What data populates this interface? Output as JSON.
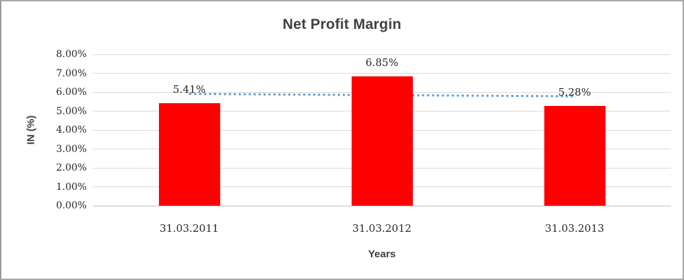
{
  "window": {
    "background_color": "#ffffff",
    "frame_color": "#a6a6a6"
  },
  "chart_data": {
    "type": "bar",
    "title": "Net Profit Margin",
    "xlabel": "Years",
    "ylabel": "IN (%)",
    "categories": [
      "31.03.2011",
      "31.03.2012",
      "31.03.2013"
    ],
    "values": [
      5.41,
      6.85,
      5.28
    ],
    "data_labels": [
      "5.41%",
      "6.85%",
      "5.28%"
    ],
    "ylim": [
      0,
      8
    ],
    "ytick_step": 1,
    "ytick_labels": [
      "0.00%",
      "1.00%",
      "2.00%",
      "3.00%",
      "4.00%",
      "5.00%",
      "6.00%",
      "7.00%",
      "8.00%"
    ],
    "grid": true,
    "legend": false,
    "bar_color": "#ff0000",
    "gridline_color": "#d9d9d9",
    "axis_line_color": "#bfbfbf",
    "title_color": "#404040",
    "tick_label_color": "#262626",
    "trendline": {
      "type": "linear",
      "style": "dotted",
      "color": "#5b9bd5",
      "y_start": 5.91,
      "y_end": 5.78
    }
  }
}
